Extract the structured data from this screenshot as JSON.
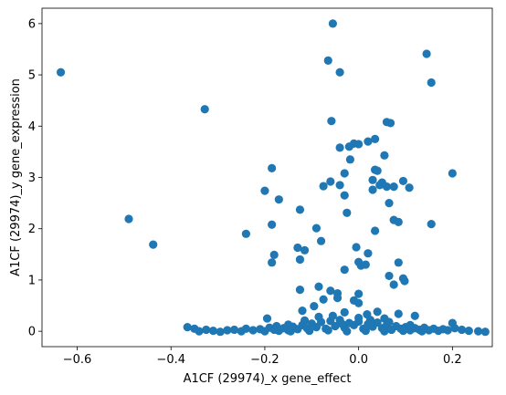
{
  "chart_data": {
    "type": "scatter",
    "xlabel": "A1CF (29974)_x gene_effect",
    "ylabel": "A1CF (29974)_y gene_expression",
    "xlim": [
      -0.675,
      0.285
    ],
    "ylim": [
      -0.3,
      6.3
    ],
    "x_ticks": [
      -0.6,
      -0.4,
      -0.2,
      0.0,
      0.2
    ],
    "x_tick_labels": [
      "−0.6",
      "−0.4",
      "−0.2",
      "0.0",
      "0.2"
    ],
    "y_ticks": [
      0,
      1,
      2,
      3,
      4,
      5,
      6
    ],
    "y_tick_labels": [
      "0",
      "1",
      "2",
      "3",
      "4",
      "5",
      "6"
    ],
    "grid": false,
    "marker_color": "#1f77b4",
    "points": [
      [
        -0.635,
        5.05
      ],
      [
        -0.49,
        2.19
      ],
      [
        -0.438,
        1.69
      ],
      [
        -0.328,
        4.33
      ],
      [
        -0.24,
        1.9
      ],
      [
        -0.055,
        6.0
      ],
      [
        0.145,
        5.41
      ],
      [
        -0.065,
        5.28
      ],
      [
        -0.04,
        5.05
      ],
      [
        0.155,
        4.85
      ],
      [
        -0.058,
        4.1
      ],
      [
        0.06,
        4.08
      ],
      [
        0.068,
        4.06
      ],
      [
        -0.01,
        3.66
      ],
      [
        0.0,
        3.65
      ],
      [
        0.02,
        3.7
      ],
      [
        0.035,
        3.75
      ],
      [
        -0.04,
        3.58
      ],
      [
        -0.02,
        3.6
      ],
      [
        0.055,
        3.43
      ],
      [
        -0.018,
        3.35
      ],
      [
        -0.185,
        3.18
      ],
      [
        -0.03,
        3.08
      ],
      [
        0.035,
        3.15
      ],
      [
        0.04,
        3.13
      ],
      [
        0.2,
        3.08
      ],
      [
        -0.06,
        2.92
      ],
      [
        -0.04,
        2.85
      ],
      [
        -0.075,
        2.83
      ],
      [
        0.03,
        2.95
      ],
      [
        0.05,
        2.9
      ],
      [
        0.045,
        2.85
      ],
      [
        0.06,
        2.82
      ],
      [
        0.075,
        2.82
      ],
      [
        0.095,
        2.93
      ],
      [
        0.108,
        2.8
      ],
      [
        0.03,
        2.76
      ],
      [
        -0.2,
        2.74
      ],
      [
        -0.03,
        2.65
      ],
      [
        -0.17,
        2.57
      ],
      [
        0.065,
        2.5
      ],
      [
        -0.125,
        2.37
      ],
      [
        -0.025,
        2.31
      ],
      [
        0.075,
        2.17
      ],
      [
        0.085,
        2.13
      ],
      [
        0.155,
        2.09
      ],
      [
        -0.185,
        2.08
      ],
      [
        -0.09,
        2.01
      ],
      [
        0.035,
        1.96
      ],
      [
        -0.08,
        1.76
      ],
      [
        -0.005,
        1.64
      ],
      [
        -0.13,
        1.63
      ],
      [
        -0.115,
        1.58
      ],
      [
        0.02,
        1.52
      ],
      [
        -0.18,
        1.49
      ],
      [
        -0.125,
        1.4
      ],
      [
        -0.185,
        1.34
      ],
      [
        0.085,
        1.34
      ],
      [
        0.0,
        1.35
      ],
      [
        0.005,
        1.28
      ],
      [
        0.015,
        1.3
      ],
      [
        -0.03,
        1.2
      ],
      [
        0.065,
        1.08
      ],
      [
        0.095,
        1.03
      ],
      [
        0.098,
        0.98
      ],
      [
        0.075,
        0.91
      ],
      [
        -0.085,
        0.87
      ],
      [
        -0.06,
        0.79
      ],
      [
        -0.125,
        0.81
      ],
      [
        0.0,
        0.73
      ],
      [
        -0.045,
        0.74
      ],
      [
        -0.045,
        0.65
      ],
      [
        -0.075,
        0.62
      ],
      [
        -0.01,
        0.6
      ],
      [
        0.0,
        0.55
      ],
      [
        -0.095,
        0.49
      ],
      [
        -0.12,
        0.4
      ],
      [
        -0.03,
        0.37
      ],
      [
        0.04,
        0.38
      ],
      [
        0.085,
        0.34
      ],
      [
        0.12,
        0.3
      ],
      [
        -0.195,
        0.25
      ],
      [
        0.2,
        0.16
      ],
      [
        0.018,
        0.33
      ],
      [
        0.055,
        0.25
      ],
      [
        -0.365,
        0.08
      ],
      [
        -0.35,
        0.05
      ],
      [
        -0.34,
        0.0
      ],
      [
        -0.325,
        0.03
      ],
      [
        -0.31,
        0.01
      ],
      [
        -0.295,
        -0.01
      ],
      [
        -0.28,
        0.02
      ],
      [
        -0.265,
        0.03
      ],
      [
        -0.25,
        0.0
      ],
      [
        -0.24,
        0.05
      ],
      [
        -0.225,
        0.02
      ],
      [
        -0.21,
        0.04
      ],
      [
        -0.2,
        0.0
      ],
      [
        -0.19,
        0.07
      ],
      [
        -0.18,
        0.03
      ],
      [
        -0.17,
        0.01
      ],
      [
        -0.16,
        0.06
      ],
      [
        -0.15,
        0.02
      ],
      [
        -0.14,
        0.09
      ],
      [
        -0.13,
        0.04
      ],
      [
        -0.12,
        0.12
      ],
      [
        -0.11,
        0.06
      ],
      [
        -0.1,
        0.15
      ],
      [
        -0.09,
        0.08
      ],
      [
        -0.08,
        0.18
      ],
      [
        -0.07,
        0.05
      ],
      [
        -0.06,
        0.2
      ],
      [
        -0.05,
        0.1
      ],
      [
        -0.04,
        0.22
      ],
      [
        -0.03,
        0.07
      ],
      [
        -0.02,
        0.16
      ],
      [
        -0.01,
        0.12
      ],
      [
        0.0,
        0.19
      ],
      [
        0.01,
        0.05
      ],
      [
        0.02,
        0.14
      ],
      [
        0.03,
        0.09
      ],
      [
        0.04,
        0.17
      ],
      [
        0.05,
        0.06
      ],
      [
        0.06,
        0.12
      ],
      [
        0.07,
        0.03
      ],
      [
        0.08,
        0.1
      ],
      [
        0.09,
        0.05
      ],
      [
        0.1,
        0.08
      ],
      [
        0.11,
        0.02
      ],
      [
        0.12,
        0.06
      ],
      [
        0.13,
        0.03
      ],
      [
        0.14,
        0.07
      ],
      [
        0.15,
        0.02
      ],
      [
        0.16,
        0.05
      ],
      [
        0.17,
        0.01
      ],
      [
        0.18,
        0.04
      ],
      [
        0.19,
        0.02
      ],
      [
        0.205,
        0.06
      ],
      [
        0.22,
        0.03
      ],
      [
        0.235,
        0.01
      ],
      [
        0.255,
        0.0
      ],
      [
        0.27,
        -0.01
      ],
      [
        -0.145,
        0.0
      ],
      [
        -0.105,
        0.01
      ],
      [
        -0.065,
        0.02
      ],
      [
        -0.025,
        0.0
      ],
      [
        0.015,
        0.01
      ],
      [
        0.055,
        0.0
      ],
      [
        0.095,
        0.01
      ],
      [
        0.135,
        0.0
      ],
      [
        -0.085,
        0.28
      ],
      [
        -0.055,
        0.3
      ],
      [
        -0.035,
        0.14
      ],
      [
        0.0,
        0.26
      ],
      [
        0.025,
        0.22
      ],
      [
        -0.115,
        0.21
      ],
      [
        -0.15,
        0.13
      ],
      [
        0.065,
        0.18
      ],
      [
        0.11,
        0.12
      ],
      [
        -0.175,
        0.1
      ]
    ]
  }
}
